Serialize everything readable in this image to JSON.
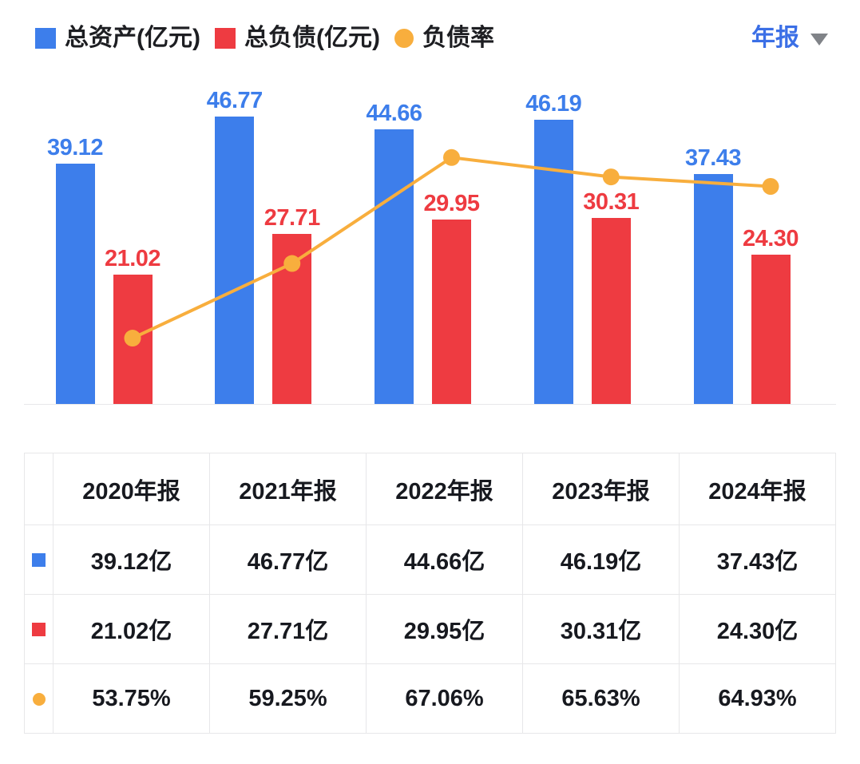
{
  "colors": {
    "assets_blue": "#3d7eeb",
    "liabilities_red": "#ee3b41",
    "ratio_yellow": "#f8ae3d",
    "period_blue": "#3b6fe6",
    "caret_gray": "#808388",
    "table_border": "#e7e7e9",
    "text_dark": "#17191f"
  },
  "legend": {
    "items": [
      {
        "label": "总资产(亿元)",
        "color": "#3d7eeb",
        "shape": "square"
      },
      {
        "label": "总负债(亿元)",
        "color": "#ee3b41",
        "shape": "square"
      },
      {
        "label": "负债率",
        "color": "#f8ae3d",
        "shape": "circle"
      }
    ]
  },
  "period_selector": {
    "label": "年报"
  },
  "chart_data": {
    "type": "bar+line",
    "categories": [
      "2020年报",
      "2021年报",
      "2022年报",
      "2023年报",
      "2024年报"
    ],
    "series": [
      {
        "name": "总资产(亿元)",
        "type": "bar",
        "color": "#3d7eeb",
        "unit": "亿元",
        "values": [
          39.12,
          46.77,
          44.66,
          46.19,
          37.43
        ],
        "labels": [
          "39.12",
          "46.77",
          "44.66",
          "46.19",
          "37.43"
        ]
      },
      {
        "name": "总负债(亿元)",
        "type": "bar",
        "color": "#ee3b41",
        "unit": "亿元",
        "values": [
          21.02,
          27.71,
          29.95,
          30.31,
          24.3
        ],
        "labels": [
          "21.02",
          "27.71",
          "29.95",
          "30.31",
          "24.30"
        ]
      },
      {
        "name": "负债率",
        "type": "line",
        "color": "#f8ae3d",
        "unit": "%",
        "values": [
          53.75,
          59.25,
          67.06,
          65.63,
          64.93
        ],
        "labels": [
          "53.75%",
          "59.25%",
          "67.06%",
          "65.63%",
          "64.93%"
        ]
      }
    ],
    "title": "",
    "xlabel": "",
    "ylabel": "",
    "legend_position": "top",
    "grid": false,
    "value_axis_visible": false
  },
  "table": {
    "header": [
      "2020年报",
      "2021年报",
      "2022年报",
      "2023年报",
      "2024年报"
    ],
    "rows": [
      {
        "icon": "blue-square-swatch",
        "color": "#3d7eeb",
        "shape": "square",
        "cells": [
          "39.12亿",
          "46.77亿",
          "44.66亿",
          "46.19亿",
          "37.43亿"
        ]
      },
      {
        "icon": "red-square-swatch",
        "color": "#ee3b41",
        "shape": "square",
        "cells": [
          "21.02亿",
          "27.71亿",
          "29.95亿",
          "30.31亿",
          "24.30亿"
        ]
      },
      {
        "icon": "yellow-circle-swatch",
        "color": "#f8ae3d",
        "shape": "circle",
        "cells": [
          "53.75%",
          "59.25%",
          "67.06%",
          "65.63%",
          "64.93%"
        ]
      }
    ]
  }
}
